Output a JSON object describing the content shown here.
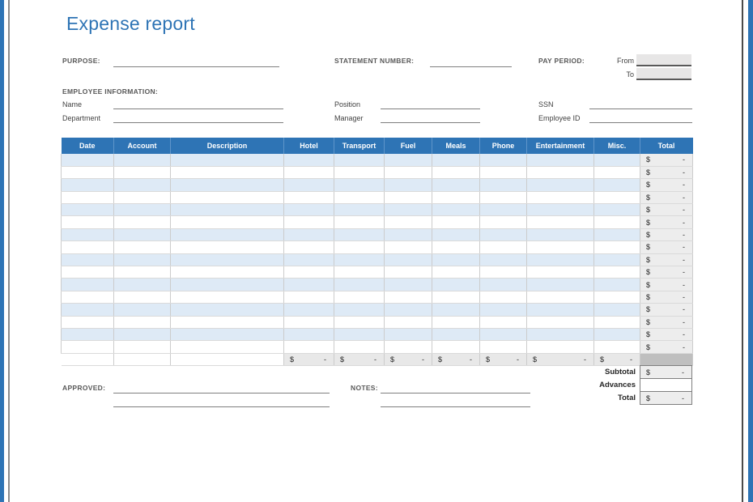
{
  "title": "Expense report",
  "accent_color": "#2E74B5",
  "row_alt_color": "#DEEAF6",
  "form": {
    "purpose_label": "PURPOSE:",
    "purpose_value": "",
    "statement_number_label": "STATEMENT NUMBER:",
    "statement_number_value": "",
    "pay_period_label": "PAY PERIOD:",
    "from_label": "From",
    "from_value": "",
    "to_label": "To",
    "to_value": ""
  },
  "employee": {
    "section_label": "EMPLOYEE INFORMATION:",
    "fields": [
      {
        "label": "Name",
        "value": ""
      },
      {
        "label": "Position",
        "value": ""
      },
      {
        "label": "SSN",
        "value": ""
      },
      {
        "label": "Department",
        "value": ""
      },
      {
        "label": "Manager",
        "value": ""
      },
      {
        "label": "Employee ID",
        "value": ""
      }
    ]
  },
  "table": {
    "columns": [
      "Date",
      "Account",
      "Description",
      "Hotel",
      "Transport",
      "Fuel",
      "Meals",
      "Phone",
      "Entertainment",
      "Misc.",
      "Total"
    ],
    "column_keys": [
      "date",
      "account",
      "description",
      "hotel",
      "transport",
      "fuel",
      "meals",
      "phone",
      "entertainment",
      "misc"
    ],
    "rows": [
      {
        "cells": [
          "",
          "",
          "",
          "",
          "",
          "",
          "",
          "",
          "",
          ""
        ],
        "total_currency": "$",
        "total_amount": "-"
      },
      {
        "cells": [
          "",
          "",
          "",
          "",
          "",
          "",
          "",
          "",
          "",
          ""
        ],
        "total_currency": "$",
        "total_amount": "-"
      },
      {
        "cells": [
          "",
          "",
          "",
          "",
          "",
          "",
          "",
          "",
          "",
          ""
        ],
        "total_currency": "$",
        "total_amount": "-"
      },
      {
        "cells": [
          "",
          "",
          "",
          "",
          "",
          "",
          "",
          "",
          "",
          ""
        ],
        "total_currency": "$",
        "total_amount": "-"
      },
      {
        "cells": [
          "",
          "",
          "",
          "",
          "",
          "",
          "",
          "",
          "",
          ""
        ],
        "total_currency": "$",
        "total_amount": "-"
      },
      {
        "cells": [
          "",
          "",
          "",
          "",
          "",
          "",
          "",
          "",
          "",
          ""
        ],
        "total_currency": "$",
        "total_amount": "-"
      },
      {
        "cells": [
          "",
          "",
          "",
          "",
          "",
          "",
          "",
          "",
          "",
          ""
        ],
        "total_currency": "$",
        "total_amount": "-"
      },
      {
        "cells": [
          "",
          "",
          "",
          "",
          "",
          "",
          "",
          "",
          "",
          ""
        ],
        "total_currency": "$",
        "total_amount": "-"
      },
      {
        "cells": [
          "",
          "",
          "",
          "",
          "",
          "",
          "",
          "",
          "",
          ""
        ],
        "total_currency": "$",
        "total_amount": "-"
      },
      {
        "cells": [
          "",
          "",
          "",
          "",
          "",
          "",
          "",
          "",
          "",
          ""
        ],
        "total_currency": "$",
        "total_amount": "-"
      },
      {
        "cells": [
          "",
          "",
          "",
          "",
          "",
          "",
          "",
          "",
          "",
          ""
        ],
        "total_currency": "$",
        "total_amount": "-"
      },
      {
        "cells": [
          "",
          "",
          "",
          "",
          "",
          "",
          "",
          "",
          "",
          ""
        ],
        "total_currency": "$",
        "total_amount": "-"
      },
      {
        "cells": [
          "",
          "",
          "",
          "",
          "",
          "",
          "",
          "",
          "",
          ""
        ],
        "total_currency": "$",
        "total_amount": "-"
      },
      {
        "cells": [
          "",
          "",
          "",
          "",
          "",
          "",
          "",
          "",
          "",
          ""
        ],
        "total_currency": "$",
        "total_amount": "-"
      },
      {
        "cells": [
          "",
          "",
          "",
          "",
          "",
          "",
          "",
          "",
          "",
          ""
        ],
        "total_currency": "$",
        "total_amount": "-"
      },
      {
        "cells": [
          "",
          "",
          "",
          "",
          "",
          "",
          "",
          "",
          "",
          ""
        ],
        "total_currency": "$",
        "total_amount": "-"
      }
    ],
    "column_totals": {
      "cells": [
        {
          "currency": "$",
          "amount": "-"
        },
        {
          "currency": "$",
          "amount": "-"
        },
        {
          "currency": "$",
          "amount": "-"
        },
        {
          "currency": "$",
          "amount": "-"
        },
        {
          "currency": "$",
          "amount": "-"
        },
        {
          "currency": "$",
          "amount": "-"
        },
        {
          "currency": "$",
          "amount": "-"
        }
      ]
    }
  },
  "summary": {
    "rows": [
      {
        "label": "Subtotal",
        "currency": "$",
        "amount": "-"
      },
      {
        "label": "Advances",
        "currency": "",
        "amount": ""
      },
      {
        "label": "Total",
        "currency": "$",
        "amount": "-"
      }
    ]
  },
  "footer": {
    "approved_label": "APPROVED:",
    "notes_label": "NOTES:"
  }
}
